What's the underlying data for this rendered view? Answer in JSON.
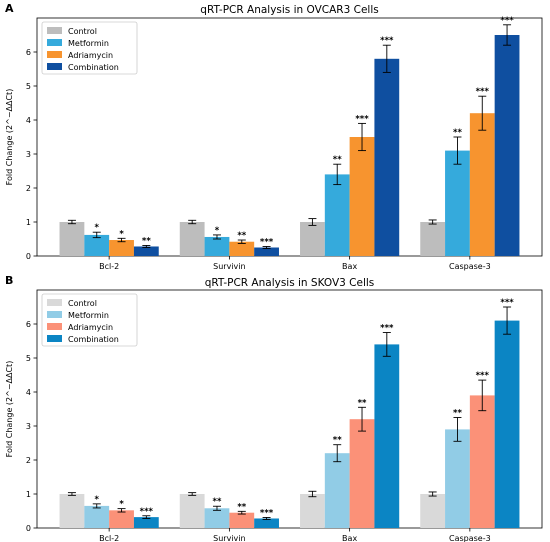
{
  "chart_data": [
    {
      "panel": "A",
      "type": "bar",
      "title": "qRT-PCR Analysis in OVCAR3 Cells",
      "ylabel": "Fold Change (2^−ΔΔCt)",
      "xlabel": "",
      "categories": [
        "Bcl-2",
        "Survivin",
        "Bax",
        "Caspase-3"
      ],
      "ylim": [
        0,
        7
      ],
      "yticks": [
        0,
        1,
        2,
        3,
        4,
        5,
        6
      ],
      "legend_position": "top-left",
      "series": [
        {
          "name": "Control",
          "color": "#bdbdbd",
          "values": [
            1.0,
            1.0,
            1.0,
            1.0
          ],
          "errors": [
            0.05,
            0.05,
            0.1,
            0.06
          ],
          "stars": [
            "",
            "",
            "",
            ""
          ]
        },
        {
          "name": "Metformin",
          "color": "#35aadc",
          "values": [
            0.62,
            0.56,
            2.4,
            3.1
          ],
          "errors": [
            0.08,
            0.06,
            0.3,
            0.4
          ],
          "stars": [
            "*",
            "*",
            "**",
            "**"
          ]
        },
        {
          "name": "Adriamycin",
          "color": "#f7942f",
          "values": [
            0.47,
            0.42,
            3.5,
            4.2
          ],
          "errors": [
            0.05,
            0.05,
            0.4,
            0.5
          ],
          "stars": [
            "*",
            "**",
            "***",
            "***"
          ]
        },
        {
          "name": "Combination",
          "color": "#0f4fa0",
          "values": [
            0.28,
            0.25,
            5.8,
            6.5
          ],
          "errors": [
            0.03,
            0.03,
            0.4,
            0.3
          ],
          "stars": [
            "**",
            "***",
            "***",
            "***"
          ]
        }
      ]
    },
    {
      "panel": "B",
      "type": "bar",
      "title": "qRT-PCR Analysis in SKOV3 Cells",
      "ylabel": "Fold Change (2^−ΔΔCt)",
      "xlabel": "",
      "categories": [
        "Bcl-2",
        "Survivin",
        "Bax",
        "Caspase-3"
      ],
      "ylim": [
        0,
        7
      ],
      "yticks": [
        0,
        1,
        2,
        3,
        4,
        5,
        6
      ],
      "legend_position": "top-left",
      "series": [
        {
          "name": "Control",
          "color": "#d9d9d9",
          "values": [
            1.0,
            1.0,
            1.0,
            1.0
          ],
          "errors": [
            0.04,
            0.04,
            0.08,
            0.06
          ],
          "stars": [
            "",
            "",
            "",
            ""
          ]
        },
        {
          "name": "Metformin",
          "color": "#91cce6",
          "values": [
            0.65,
            0.58,
            2.2,
            2.9
          ],
          "errors": [
            0.06,
            0.06,
            0.25,
            0.35
          ],
          "stars": [
            "*",
            "**",
            "**",
            "**"
          ]
        },
        {
          "name": "Adriamycin",
          "color": "#fb9178",
          "values": [
            0.52,
            0.45,
            3.2,
            3.9
          ],
          "errors": [
            0.05,
            0.04,
            0.35,
            0.45
          ],
          "stars": [
            "*",
            "**",
            "**",
            "***"
          ]
        },
        {
          "name": "Combination",
          "color": "#0b85c4",
          "values": [
            0.32,
            0.28,
            5.4,
            6.1
          ],
          "errors": [
            0.04,
            0.03,
            0.35,
            0.4
          ],
          "stars": [
            "***",
            "***",
            "***",
            "***"
          ]
        }
      ]
    }
  ]
}
